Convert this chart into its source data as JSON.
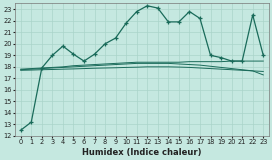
{
  "xlabel": "Humidex (Indice chaleur)",
  "x_ticks": [
    0,
    1,
    2,
    3,
    4,
    5,
    6,
    7,
    8,
    9,
    10,
    11,
    12,
    13,
    14,
    15,
    16,
    17,
    18,
    19,
    20,
    21,
    22,
    23
  ],
  "ylim": [
    12,
    23.5
  ],
  "xlim": [
    -0.5,
    23.5
  ],
  "yticks": [
    12,
    13,
    14,
    15,
    16,
    17,
    18,
    19,
    20,
    21,
    22,
    23
  ],
  "bg_color": "#c5e8e0",
  "grid_color": "#aad4ca",
  "line_color": "#1a6b5a",
  "series": {
    "main": [
      12.5,
      13.2,
      17.9,
      19.0,
      19.8,
      19.1,
      18.5,
      19.1,
      20.0,
      20.5,
      21.8,
      22.8,
      23.3,
      23.1,
      21.9,
      21.9,
      22.8,
      22.2,
      19.0,
      18.8,
      18.5,
      18.5,
      22.5,
      19.0
    ],
    "flat1": [
      17.8,
      17.85,
      17.9,
      17.95,
      18.0,
      18.1,
      18.15,
      18.2,
      18.25,
      18.3,
      18.35,
      18.4,
      18.4,
      18.4,
      18.4,
      18.4,
      18.45,
      18.45,
      18.45,
      18.45,
      18.5,
      18.5,
      18.5,
      18.5
    ],
    "flat2": [
      17.75,
      17.8,
      17.85,
      17.9,
      17.95,
      18.0,
      18.05,
      18.1,
      18.15,
      18.2,
      18.25,
      18.3,
      18.3,
      18.3,
      18.3,
      18.25,
      18.2,
      18.15,
      18.05,
      17.95,
      17.85,
      17.75,
      17.65,
      17.3
    ],
    "flat3": [
      17.7,
      17.72,
      17.75,
      17.77,
      17.8,
      17.82,
      17.85,
      17.88,
      17.9,
      17.92,
      17.95,
      17.97,
      18.0,
      18.0,
      18.0,
      17.98,
      17.95,
      17.9,
      17.85,
      17.8,
      17.75,
      17.7,
      17.65,
      17.6
    ]
  }
}
